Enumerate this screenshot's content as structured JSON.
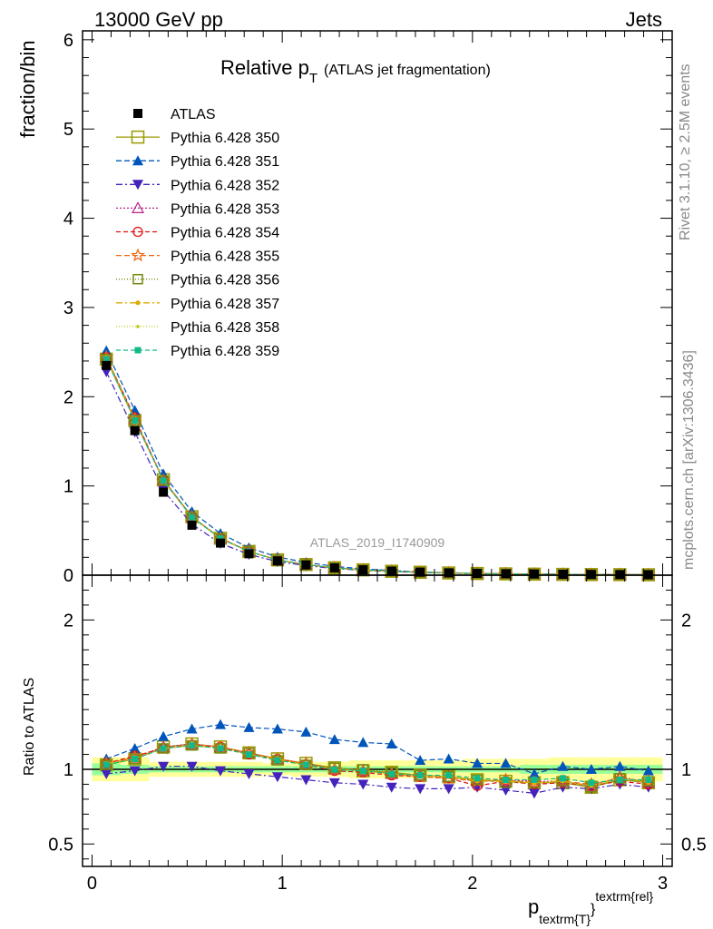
{
  "header": {
    "left": "13000 GeV pp",
    "right": "Jets",
    "title_main": "Relative p",
    "title_sub": "T",
    "title_suffix": "(ATLAS jet fragmentation)",
    "analysis_id": "ATLAS_2019_I1740909",
    "side_top": "Rivet 3.1.10, ≥ 2.5M events",
    "side_bottom": "mcplots.cern.ch [arXiv:1306.3436]",
    "xlabel_main": "p",
    "xlabel_sub": "textrm{T}",
    "xlabel_sup": "textrm{rel}",
    "xlabel_close": "}",
    "ylabel_top": "fraction/bin",
    "ylabel_bottom": "Ratio to ATLAS"
  },
  "chart_data": {
    "type": "line",
    "x": [
      0.075,
      0.225,
      0.375,
      0.525,
      0.675,
      0.825,
      0.975,
      1.125,
      1.275,
      1.425,
      1.575,
      1.725,
      1.875,
      2.025,
      2.175,
      2.325,
      2.475,
      2.625,
      2.775,
      2.925
    ],
    "x_ticks": [
      "0",
      "1",
      "2",
      "3"
    ],
    "xlim": [
      -0.05,
      3.05
    ],
    "top": {
      "ylim": [
        0,
        6.1
      ],
      "y_ticks": [
        "0",
        "1",
        "2",
        "3",
        "4",
        "5",
        "6"
      ],
      "data": [
        2.35,
        1.62,
        0.93,
        0.56,
        0.36,
        0.24,
        0.16,
        0.115,
        0.082,
        0.06,
        0.045,
        0.034,
        0.026,
        0.02,
        0.016,
        0.013,
        0.01,
        0.008,
        0.0065,
        0.005
      ]
    },
    "ratio": {
      "ylim": [
        0.35,
        2.3
      ],
      "y_ticks": [
        "0.5",
        "1",
        "2"
      ],
      "band_outer": [
        0.08,
        0.08,
        0.05,
        0.05,
        0.05,
        0.05,
        0.04,
        0.05,
        0.05,
        0.06,
        0.06,
        0.06,
        0.06,
        0.07,
        0.07,
        0.07,
        0.08,
        0.08,
        0.08,
        0.08
      ],
      "band_inner": [
        0.04,
        0.03,
        0.02,
        0.02,
        0.02,
        0.02,
        0.02,
        0.02,
        0.02,
        0.02,
        0.02,
        0.02,
        0.02,
        0.02,
        0.02,
        0.03,
        0.03,
        0.03,
        0.03,
        0.03
      ]
    },
    "series": [
      {
        "name": "ATLAS",
        "color": "#000000",
        "marker": "square-filled",
        "dash": "none"
      },
      {
        "name": "Pythia 6.428 350",
        "color": "#999900",
        "marker": "square-open-large",
        "dash": "solid",
        "ratio": [
          1.03,
          1.07,
          1.15,
          1.17,
          1.15,
          1.11,
          1.07,
          1.04,
          1.01,
          0.99,
          0.98,
          0.96,
          0.95,
          0.93,
          0.92,
          0.91,
          0.91,
          0.88,
          0.93,
          0.91
        ]
      },
      {
        "name": "Pythia 6.428 351",
        "color": "#0055bb",
        "marker": "triangle-up-filled",
        "dash": "6,3",
        "ratio": [
          1.07,
          1.14,
          1.22,
          1.27,
          1.3,
          1.28,
          1.27,
          1.25,
          1.2,
          1.18,
          1.17,
          1.06,
          1.07,
          1.04,
          1.04,
          0.97,
          1.02,
          1.0,
          1.02,
          0.99
        ]
      },
      {
        "name": "Pythia 6.428 352",
        "color": "#4422bb",
        "marker": "triangle-down-filled",
        "dash": "7,3,2,3",
        "ratio": [
          0.97,
          0.99,
          1.02,
          1.02,
          0.99,
          0.97,
          0.95,
          0.93,
          0.91,
          0.9,
          0.88,
          0.87,
          0.87,
          0.88,
          0.86,
          0.84,
          0.88,
          0.87,
          0.9,
          0.88
        ]
      },
      {
        "name": "Pythia 6.428 353",
        "color": "#bb2288",
        "marker": "triangle-up-open",
        "dash": "2,2",
        "ratio": [
          1.04,
          1.08,
          1.15,
          1.17,
          1.15,
          1.11,
          1.07,
          1.04,
          1.0,
          0.99,
          0.97,
          0.96,
          0.95,
          0.92,
          0.93,
          0.92,
          0.92,
          0.89,
          0.95,
          0.91
        ]
      },
      {
        "name": "Pythia 6.428 354",
        "color": "#dd1111",
        "marker": "circle-open",
        "dash": "5,3",
        "ratio": [
          1.04,
          1.09,
          1.14,
          1.16,
          1.15,
          1.1,
          1.07,
          1.03,
          0.99,
          0.98,
          0.96,
          0.95,
          0.94,
          0.89,
          0.92,
          0.9,
          0.91,
          0.89,
          0.92,
          0.9
        ]
      },
      {
        "name": "Pythia 6.428 355",
        "color": "#ee6611",
        "marker": "star-open",
        "dash": "6,3",
        "ratio": [
          1.04,
          1.08,
          1.14,
          1.17,
          1.15,
          1.11,
          1.07,
          1.04,
          1.0,
          0.99,
          0.97,
          0.95,
          0.94,
          0.92,
          0.93,
          0.91,
          0.92,
          0.9,
          0.94,
          0.92
        ]
      },
      {
        "name": "Pythia 6.428 356",
        "color": "#778811",
        "marker": "square-open",
        "dash": "1,2",
        "ratio": [
          1.03,
          1.07,
          1.14,
          1.16,
          1.14,
          1.11,
          1.06,
          1.03,
          1.01,
          1.0,
          0.98,
          0.96,
          0.95,
          0.93,
          0.91,
          0.91,
          0.92,
          0.88,
          0.94,
          0.92
        ]
      },
      {
        "name": "Pythia 6.428 357",
        "color": "#ddaa00",
        "marker": "dot",
        "dash": "7,3,2,3",
        "ratio": [
          1.04,
          1.07,
          1.14,
          1.16,
          1.14,
          1.1,
          1.07,
          1.03,
          1.0,
          0.99,
          0.97,
          0.96,
          0.95,
          0.92,
          0.92,
          0.91,
          0.92,
          0.89,
          0.94,
          0.91
        ]
      },
      {
        "name": "Pythia 6.428 358",
        "color": "#bbcc11",
        "marker": "dot-small",
        "dash": "1,2",
        "ratio": [
          1.03,
          1.07,
          1.14,
          1.16,
          1.14,
          1.1,
          1.06,
          1.03,
          1.0,
          0.99,
          0.97,
          0.96,
          0.95,
          0.93,
          0.92,
          0.91,
          0.92,
          0.89,
          0.94,
          0.92
        ]
      },
      {
        "name": "Pythia 6.428 359",
        "color": "#11bb88",
        "marker": "square-filled-small",
        "dash": "5,3",
        "ratio": [
          1.03,
          1.07,
          1.14,
          1.16,
          1.14,
          1.1,
          1.06,
          1.03,
          1.0,
          0.99,
          0.97,
          0.96,
          0.96,
          0.94,
          0.93,
          0.93,
          0.94,
          0.91,
          0.93,
          0.93
        ]
      }
    ]
  }
}
